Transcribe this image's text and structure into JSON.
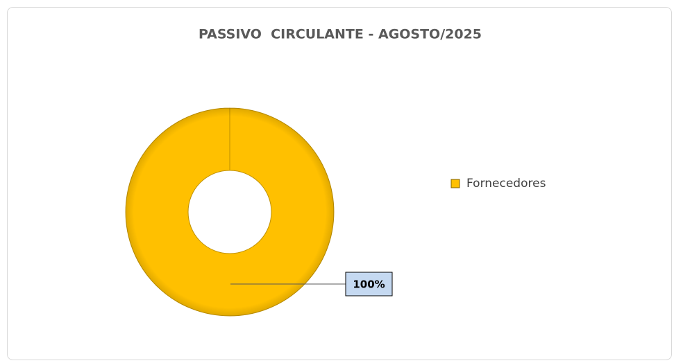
{
  "chart_data": {
    "type": "donut",
    "title": "PASSIVO  CIRCULANTE - AGOSTO/2025",
    "categories": [
      "Fornecedores"
    ],
    "values": [
      100
    ],
    "value_labels": [
      "100%"
    ],
    "colors": [
      "#ffc000"
    ],
    "legend": "right"
  }
}
